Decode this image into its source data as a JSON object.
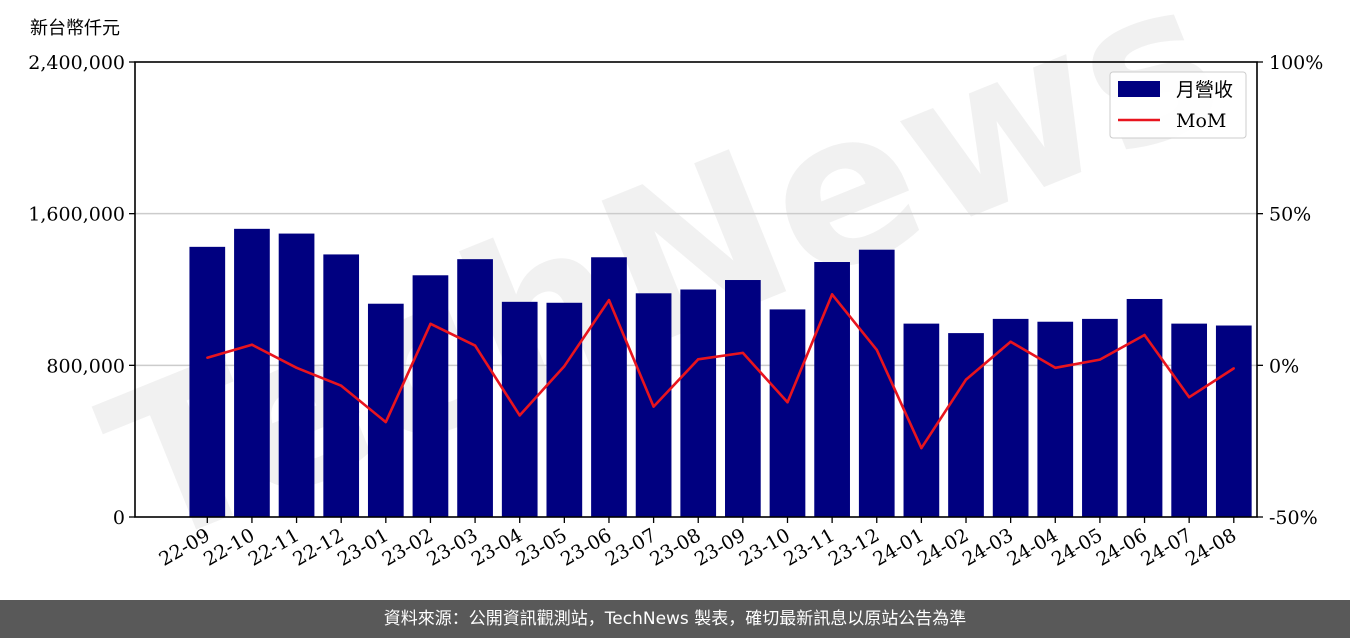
{
  "y_unit_label": "新台幣仟元",
  "watermark": "TechNews",
  "footer": "資料來源：公開資訊觀測站，TechNews 製表，確切最新訊息以原站公告為準",
  "colors": {
    "bar": "#000080",
    "line": "#e8141e",
    "grid": "#cccccc"
  },
  "chart_data": {
    "type": "bar",
    "categories": [
      "22-09",
      "22-10",
      "22-11",
      "22-12",
      "23-01",
      "23-02",
      "23-03",
      "23-04",
      "23-05",
      "23-06",
      "23-07",
      "23-08",
      "23-09",
      "23-10",
      "23-11",
      "23-12",
      "24-01",
      "24-02",
      "24-03",
      "24-04",
      "24-05",
      "24-06",
      "24-07",
      "24-08"
    ],
    "series": [
      {
        "name": "月營收",
        "axis": "left",
        "type": "bar",
        "values": [
          1425000,
          1520000,
          1495000,
          1385000,
          1125000,
          1275000,
          1360000,
          1135000,
          1130000,
          1370000,
          1180000,
          1200000,
          1250000,
          1095000,
          1345000,
          1410000,
          1020000,
          970000,
          1045000,
          1030000,
          1045000,
          1150000,
          1020000,
          1010000
        ]
      },
      {
        "name": "MoM",
        "axis": "right",
        "type": "line",
        "unit": "%",
        "values": [
          2.5,
          6.8,
          -0.8,
          -6.7,
          -18.7,
          13.7,
          6.5,
          -16.5,
          -0.3,
          21.5,
          -13.6,
          2.0,
          4.1,
          -12.2,
          23.4,
          5.1,
          -27.3,
          -4.7,
          7.8,
          -0.8,
          1.9,
          10.0,
          -10.5,
          -1.0
        ]
      }
    ],
    "y_left": {
      "min": 0,
      "max": 2400000,
      "ticks": [
        0,
        800000,
        1600000,
        2400000
      ],
      "tick_labels": [
        "0",
        "800,000",
        "1,600,000",
        "2,400,000"
      ]
    },
    "y_right": {
      "min": -50,
      "max": 100,
      "ticks": [
        -50,
        0,
        50,
        100
      ],
      "tick_labels": [
        "-50%",
        "0%",
        "50%",
        "100%"
      ]
    },
    "grid": "horizontal",
    "legend": {
      "position": "top-right",
      "entries": [
        "月營收",
        "MoM"
      ]
    }
  }
}
